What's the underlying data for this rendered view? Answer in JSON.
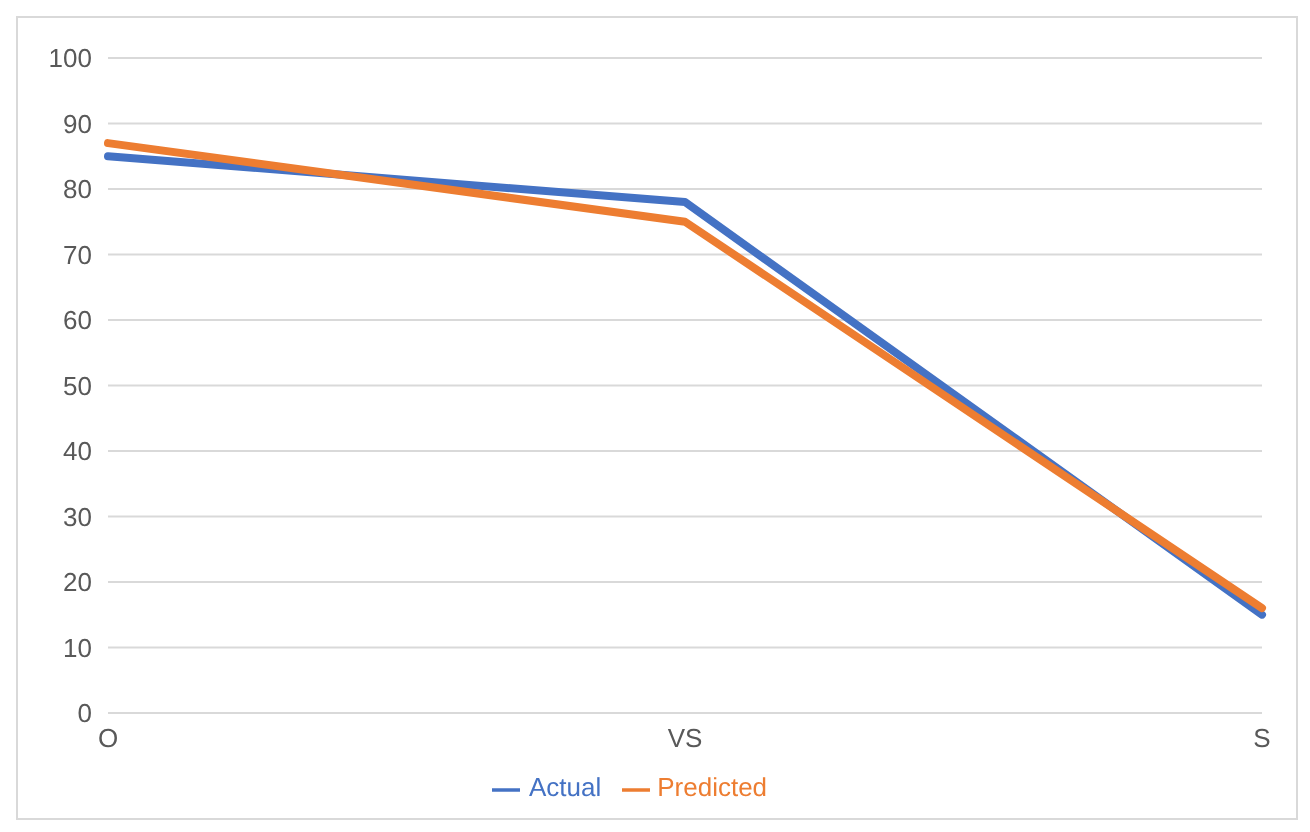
{
  "chart_data": {
    "type": "line",
    "categories": [
      "O",
      "VS",
      "S"
    ],
    "series": [
      {
        "name": "Actual",
        "color": "#4472c4",
        "values": [
          85,
          78,
          15
        ]
      },
      {
        "name": "Predicted",
        "color": "#ed7d31",
        "values": [
          87,
          75,
          16
        ]
      }
    ],
    "ylim": [
      0,
      100
    ],
    "yticks": [
      0,
      10,
      20,
      30,
      40,
      50,
      60,
      70,
      80,
      90,
      100
    ],
    "grid": "y",
    "legend": "bottom",
    "marker": "none",
    "line_style": "solid"
  }
}
